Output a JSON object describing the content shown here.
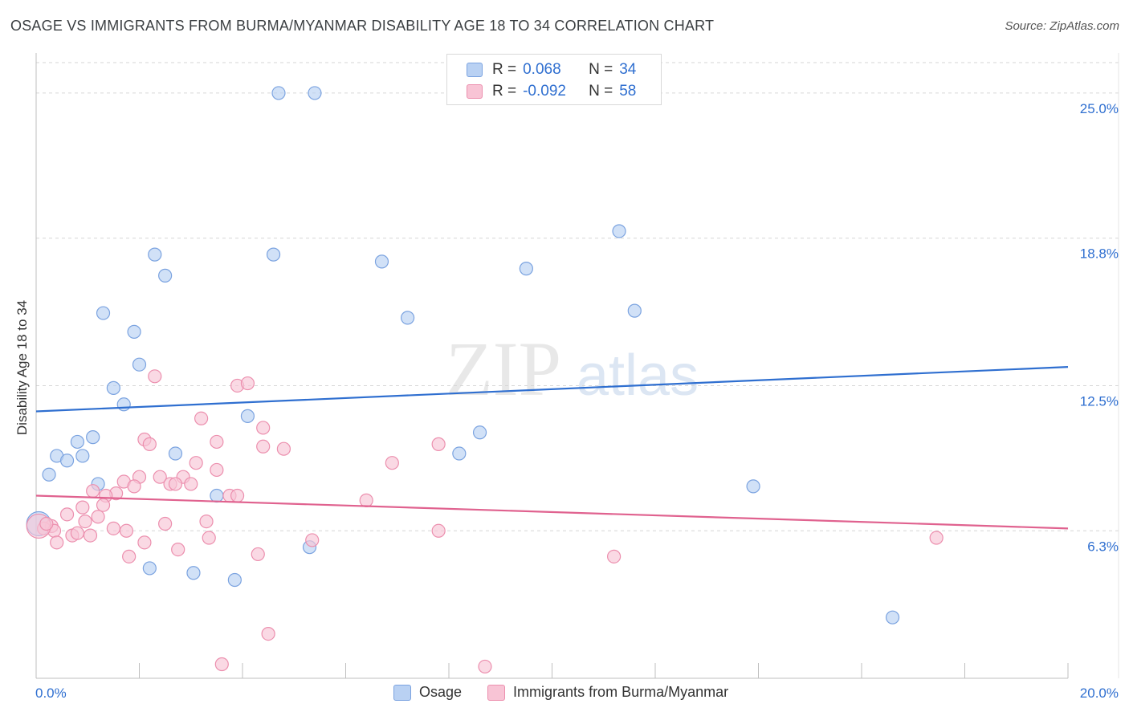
{
  "title": "OSAGE VS IMMIGRANTS FROM BURMA/MYANMAR DISABILITY AGE 18 TO 34 CORRELATION CHART",
  "source": "Source: ZipAtlas.com",
  "watermark": {
    "zip": "ZIP",
    "atlas": "atlas"
  },
  "legend": {
    "rows": [
      {
        "r_label": "R =",
        "r_value": "0.068",
        "n_label": "N =",
        "n_value": "34"
      },
      {
        "r_label": "R =",
        "r_value": "-0.092",
        "n_label": "N =",
        "n_value": "58"
      }
    ]
  },
  "colors": {
    "osage_fill": "#b9d1f3",
    "osage_stroke": "#7ba3e0",
    "osage_line": "#2f6fd0",
    "burma_fill": "#f8c4d5",
    "burma_stroke": "#ec8fae",
    "burma_line": "#e0628f",
    "axis_label": "#2f6fd0",
    "grid": "#d6d6d6"
  },
  "chart_data": {
    "type": "scatter",
    "title": "OSAGE VS IMMIGRANTS FROM BURMA/MYANMAR DISABILITY AGE 18 TO 34 CORRELATION CHART",
    "xlabel": "",
    "ylabel": "Disability Age 18 to 34",
    "xlim": [
      0,
      20
    ],
    "ylim": [
      0,
      26.3
    ],
    "x_tick_labels": [
      "0.0%",
      "20.0%"
    ],
    "y_ticks": [
      6.3,
      12.5,
      18.8,
      25.0
    ],
    "y_tick_labels": [
      "6.3%",
      "12.5%",
      "18.8%",
      "25.0%"
    ],
    "legend_position": "bottom",
    "series": [
      {
        "name": "Osage",
        "R": 0.068,
        "N": 34,
        "trend": {
          "x": [
            0,
            20
          ],
          "y": [
            11.4,
            13.3
          ]
        },
        "points": [
          {
            "x": 4.7,
            "y": 25.0
          },
          {
            "x": 5.4,
            "y": 25.0
          },
          {
            "x": 11.3,
            "y": 19.1
          },
          {
            "x": 2.3,
            "y": 18.1
          },
          {
            "x": 4.6,
            "y": 18.1
          },
          {
            "x": 6.7,
            "y": 17.8
          },
          {
            "x": 9.5,
            "y": 17.5
          },
          {
            "x": 2.5,
            "y": 17.2
          },
          {
            "x": 11.6,
            "y": 15.7
          },
          {
            "x": 1.3,
            "y": 15.6
          },
          {
            "x": 7.2,
            "y": 15.4
          },
          {
            "x": 1.9,
            "y": 14.8
          },
          {
            "x": 2.0,
            "y": 13.4
          },
          {
            "x": 1.5,
            "y": 12.4
          },
          {
            "x": 1.7,
            "y": 11.7
          },
          {
            "x": 4.1,
            "y": 11.2
          },
          {
            "x": 8.6,
            "y": 10.5
          },
          {
            "x": 1.1,
            "y": 10.3
          },
          {
            "x": 0.8,
            "y": 10.1
          },
          {
            "x": 0.4,
            "y": 9.5
          },
          {
            "x": 0.9,
            "y": 9.5
          },
          {
            "x": 0.6,
            "y": 9.3
          },
          {
            "x": 2.7,
            "y": 9.6
          },
          {
            "x": 8.2,
            "y": 9.6
          },
          {
            "x": 0.25,
            "y": 8.7
          },
          {
            "x": 1.2,
            "y": 8.3
          },
          {
            "x": 13.9,
            "y": 8.2
          },
          {
            "x": 3.5,
            "y": 7.8
          },
          {
            "x": 5.3,
            "y": 5.6
          },
          {
            "x": 2.2,
            "y": 4.7
          },
          {
            "x": 3.05,
            "y": 4.5
          },
          {
            "x": 3.85,
            "y": 4.2
          },
          {
            "x": 16.6,
            "y": 2.6
          },
          {
            "x": 0.05,
            "y": 6.6
          }
        ]
      },
      {
        "name": "Immigrants from Burma/Myanmar",
        "R": -0.092,
        "N": 58,
        "trend": {
          "x": [
            0,
            20
          ],
          "y": [
            7.8,
            6.4
          ]
        },
        "points": [
          {
            "x": 2.3,
            "y": 12.9
          },
          {
            "x": 3.9,
            "y": 12.5
          },
          {
            "x": 4.1,
            "y": 12.6
          },
          {
            "x": 3.2,
            "y": 11.1
          },
          {
            "x": 4.4,
            "y": 10.7
          },
          {
            "x": 2.1,
            "y": 10.2
          },
          {
            "x": 2.2,
            "y": 10.0
          },
          {
            "x": 3.5,
            "y": 10.1
          },
          {
            "x": 4.4,
            "y": 9.9
          },
          {
            "x": 4.8,
            "y": 9.8
          },
          {
            "x": 7.8,
            "y": 10.0
          },
          {
            "x": 3.1,
            "y": 9.2
          },
          {
            "x": 6.9,
            "y": 9.2
          },
          {
            "x": 3.5,
            "y": 8.9
          },
          {
            "x": 2.0,
            "y": 8.6
          },
          {
            "x": 2.4,
            "y": 8.6
          },
          {
            "x": 2.85,
            "y": 8.6
          },
          {
            "x": 1.7,
            "y": 8.4
          },
          {
            "x": 2.6,
            "y": 8.3
          },
          {
            "x": 2.7,
            "y": 8.3
          },
          {
            "x": 1.9,
            "y": 8.2
          },
          {
            "x": 3.0,
            "y": 8.3
          },
          {
            "x": 1.1,
            "y": 8.0
          },
          {
            "x": 1.55,
            "y": 7.9
          },
          {
            "x": 1.35,
            "y": 7.8
          },
          {
            "x": 3.75,
            "y": 7.8
          },
          {
            "x": 3.9,
            "y": 7.8
          },
          {
            "x": 6.4,
            "y": 7.6
          },
          {
            "x": 0.9,
            "y": 7.3
          },
          {
            "x": 1.3,
            "y": 7.4
          },
          {
            "x": 0.6,
            "y": 7.0
          },
          {
            "x": 1.2,
            "y": 6.9
          },
          {
            "x": 0.95,
            "y": 6.7
          },
          {
            "x": 2.5,
            "y": 6.6
          },
          {
            "x": 3.3,
            "y": 6.7
          },
          {
            "x": 0.3,
            "y": 6.5
          },
          {
            "x": 0.15,
            "y": 6.4
          },
          {
            "x": 0.35,
            "y": 6.3
          },
          {
            "x": 1.5,
            "y": 6.4
          },
          {
            "x": 1.75,
            "y": 6.3
          },
          {
            "x": 0.7,
            "y": 6.1
          },
          {
            "x": 0.8,
            "y": 6.2
          },
          {
            "x": 1.05,
            "y": 6.1
          },
          {
            "x": 7.8,
            "y": 6.3
          },
          {
            "x": 3.35,
            "y": 6.0
          },
          {
            "x": 5.35,
            "y": 5.9
          },
          {
            "x": 0.4,
            "y": 5.8
          },
          {
            "x": 2.1,
            "y": 5.8
          },
          {
            "x": 17.45,
            "y": 6.0
          },
          {
            "x": 2.75,
            "y": 5.5
          },
          {
            "x": 1.8,
            "y": 5.2
          },
          {
            "x": 4.3,
            "y": 5.3
          },
          {
            "x": 11.2,
            "y": 5.2
          },
          {
            "x": 4.5,
            "y": 1.9
          },
          {
            "x": 3.6,
            "y": 0.6
          },
          {
            "x": 8.7,
            "y": 0.5
          },
          {
            "x": 0.05,
            "y": 6.5
          },
          {
            "x": 0.2,
            "y": 6.6
          }
        ]
      }
    ]
  }
}
